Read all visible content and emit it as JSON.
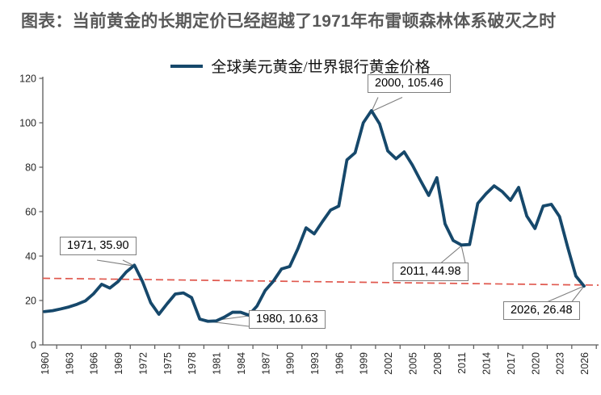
{
  "title": "图表：当前黄金的长期定价已经超越了1971年布雷顿森林体系破灭之时",
  "legend": {
    "label": "全球美元黄金/世界银行黄金价格"
  },
  "colors": {
    "series": "#16486B",
    "trend": "#E0584E",
    "title": "#595959",
    "axis": "#595959",
    "leader": "#7f7f7f",
    "tick_text": "#262626"
  },
  "chart_data": {
    "type": "line",
    "title": "图表：当前黄金的长期定价已经超越了1971年布雷顿森林体系破灭之时",
    "legend_entries": [
      "全球美元黄金/世界银行黄金价格"
    ],
    "legend_position": "top",
    "grid": false,
    "ylim": [
      0,
      120
    ],
    "yticks": [
      0,
      20,
      40,
      60,
      80,
      100,
      120
    ],
    "xticks": [
      1960,
      1963,
      1966,
      1969,
      1972,
      1975,
      1978,
      1981,
      1984,
      1987,
      1990,
      1993,
      1996,
      1999,
      2002,
      2005,
      2008,
      2011,
      2014,
      2017,
      2020,
      2023,
      2026
    ],
    "x": [
      1960,
      1961,
      1962,
      1963,
      1964,
      1965,
      1966,
      1967,
      1968,
      1969,
      1970,
      1971,
      1972,
      1973,
      1974,
      1975,
      1976,
      1977,
      1978,
      1979,
      1980,
      1981,
      1982,
      1983,
      1984,
      1985,
      1986,
      1987,
      1988,
      1989,
      1990,
      1991,
      1992,
      1993,
      1994,
      1995,
      1996,
      1997,
      1998,
      1999,
      2000,
      2001,
      2002,
      2003,
      2004,
      2005,
      2006,
      2007,
      2008,
      2009,
      2010,
      2011,
      2012,
      2013,
      2014,
      2015,
      2016,
      2017,
      2018,
      2019,
      2020,
      2021,
      2022,
      2023,
      2024,
      2025,
      2026
    ],
    "series": [
      {
        "name": "全球美元黄金/世界银行黄金价格",
        "values": [
          15.0,
          15.4,
          16.2,
          17.1,
          18.3,
          19.8,
          23.0,
          27.3,
          25.6,
          28.5,
          32.8,
          35.9,
          28.5,
          19.0,
          13.8,
          18.5,
          22.9,
          23.4,
          21.3,
          11.6,
          10.63,
          10.8,
          12.5,
          14.7,
          14.7,
          13.4,
          17.5,
          24.5,
          28.7,
          34.2,
          35.3,
          43.3,
          52.7,
          50.0,
          55.5,
          60.7,
          62.5,
          83.3,
          86.5,
          100.0,
          105.46,
          99.5,
          87.3,
          83.8,
          86.9,
          81.0,
          74.0,
          67.3,
          75.3,
          54.5,
          47.0,
          44.98,
          45.2,
          63.7,
          68.0,
          71.6,
          69.0,
          65.1,
          70.9,
          58.0,
          52.4,
          62.5,
          63.3,
          57.8,
          44.0,
          31.0,
          26.48
        ]
      }
    ],
    "trendline": {
      "style": "dashed",
      "color": "#E0584E",
      "start_value": 30.0,
      "end_value": 26.9
    },
    "annotations": [
      {
        "year": 1971,
        "value": 35.9,
        "label": "1971, 35.90"
      },
      {
        "year": 1980,
        "value": 10.63,
        "label": "1980, 10.63"
      },
      {
        "year": 2000,
        "value": 105.46,
        "label": "2000, 105.46"
      },
      {
        "year": 2011,
        "value": 44.98,
        "label": "2011, 44.98"
      },
      {
        "year": 2026,
        "value": 26.48,
        "label": "2026, 26.48"
      }
    ]
  }
}
